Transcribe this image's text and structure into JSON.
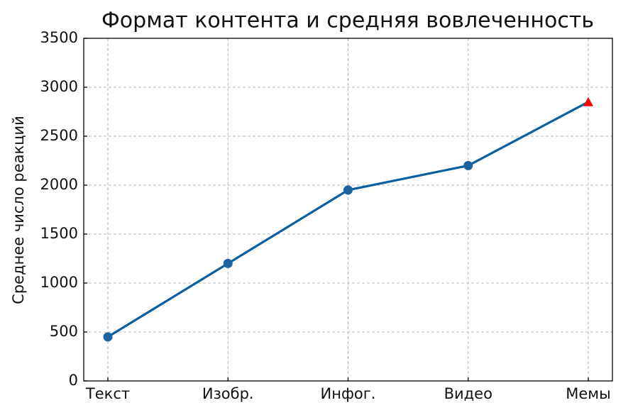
{
  "chart_data": {
    "type": "line",
    "title": "Формат контента и средняя вовлеченность",
    "ylabel": "Среднее число реакций",
    "categories": [
      "Текст",
      "Изобр.",
      "Инфог.",
      "Видео",
      "Мемы"
    ],
    "series": [
      {
        "name": "Средняя вовлеченность",
        "color": "#0b5f9e",
        "values": [
          450,
          1200,
          1950,
          2200,
          2850
        ]
      }
    ],
    "markers": [
      "circle",
      "circle",
      "circle",
      "circle",
      "triangle"
    ],
    "marker_colors": [
      "#1d63a0",
      "#1d63a0",
      "#1d63a0",
      "#1d63a0",
      "#ff0000"
    ],
    "ylim": [
      0,
      3500
    ],
    "yticks": [
      0,
      500,
      1000,
      1500,
      2000,
      2500,
      3000,
      3500
    ],
    "grid": true
  }
}
